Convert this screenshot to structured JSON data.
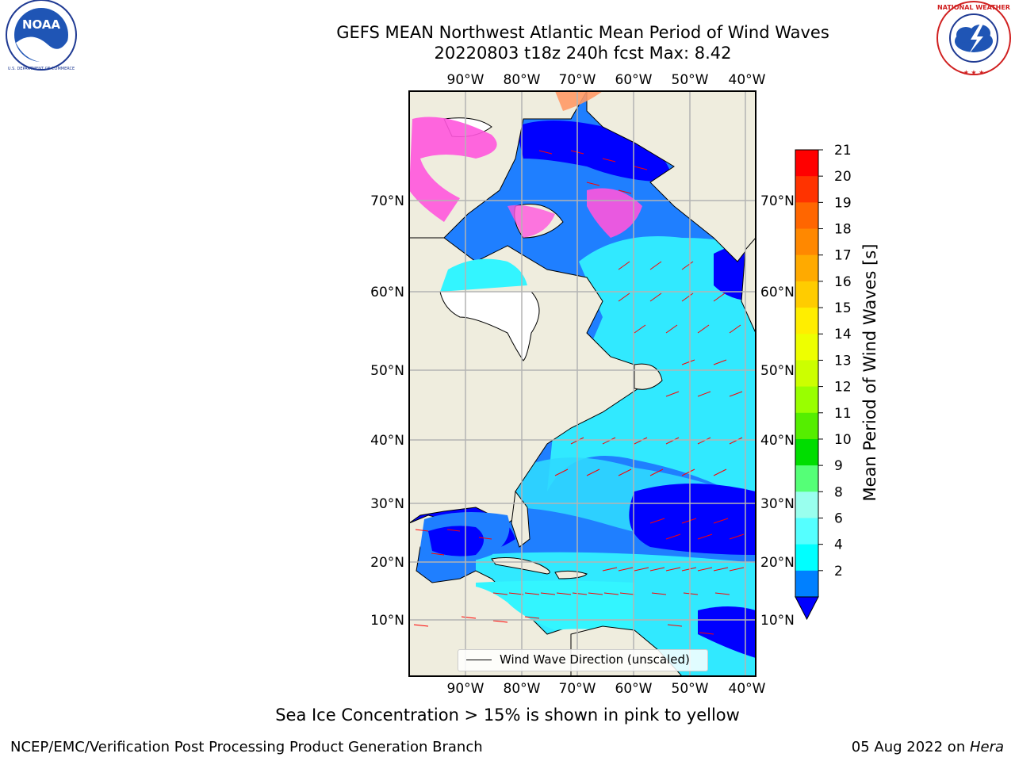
{
  "header": {
    "title_line1": "GEFS MEAN Northwest Atlantic Mean Period of Wind Waves",
    "title_line2": "20220803 t18z 240h fcst   Max: 8.42"
  },
  "logos": {
    "left": "NOAA",
    "left_ring_text": "NATIONAL OCEANIC AND ATMOSPHERIC ADMINISTRATION · U.S. DEPARTMENT OF COMMERCE",
    "right_ring_text": "NATIONAL WEATHER SERVICE"
  },
  "map": {
    "lon_labels": [
      "90°W",
      "80°W",
      "70°W",
      "60°W",
      "50°W",
      "40°W"
    ],
    "lat_labels": [
      "70°N",
      "60°N",
      "50°N",
      "40°N",
      "30°N",
      "20°N",
      "10°N"
    ],
    "legend_label": "Wind Wave Direction (unscaled)",
    "colors": {
      "land": "#efedde",
      "ocean_low": "#0000ff",
      "ocean_mid": "#0080ff",
      "ocean_high": "#33ffff",
      "arrows": "#ff0000",
      "ice": "#ff66cc"
    }
  },
  "colorbar": {
    "label": "Mean Period of Wind Waves [s]",
    "ticks": [
      "21",
      "20",
      "19",
      "18",
      "17",
      "16",
      "15",
      "14",
      "13",
      "12",
      "11",
      "10",
      "9",
      "8",
      "6",
      "4",
      "2"
    ],
    "colors": [
      "#ff0000",
      "#ff3300",
      "#ff6600",
      "#ff8800",
      "#ffaa00",
      "#ffcc00",
      "#ffee00",
      "#eeff00",
      "#ccff00",
      "#99ff00",
      "#55ee00",
      "#00dd00",
      "#55ff77",
      "#99ffee",
      "#55ffff",
      "#00ffff",
      "#0080ff"
    ],
    "extend_color": "#0000ff"
  },
  "caption": "Sea Ice Concentration > 15% is shown in pink to yellow",
  "footer": {
    "left": "NCEP/EMC/Verification Post Processing Product Generation Branch",
    "right_date": "05 Aug 2022 on ",
    "right_machine": "Hera"
  }
}
